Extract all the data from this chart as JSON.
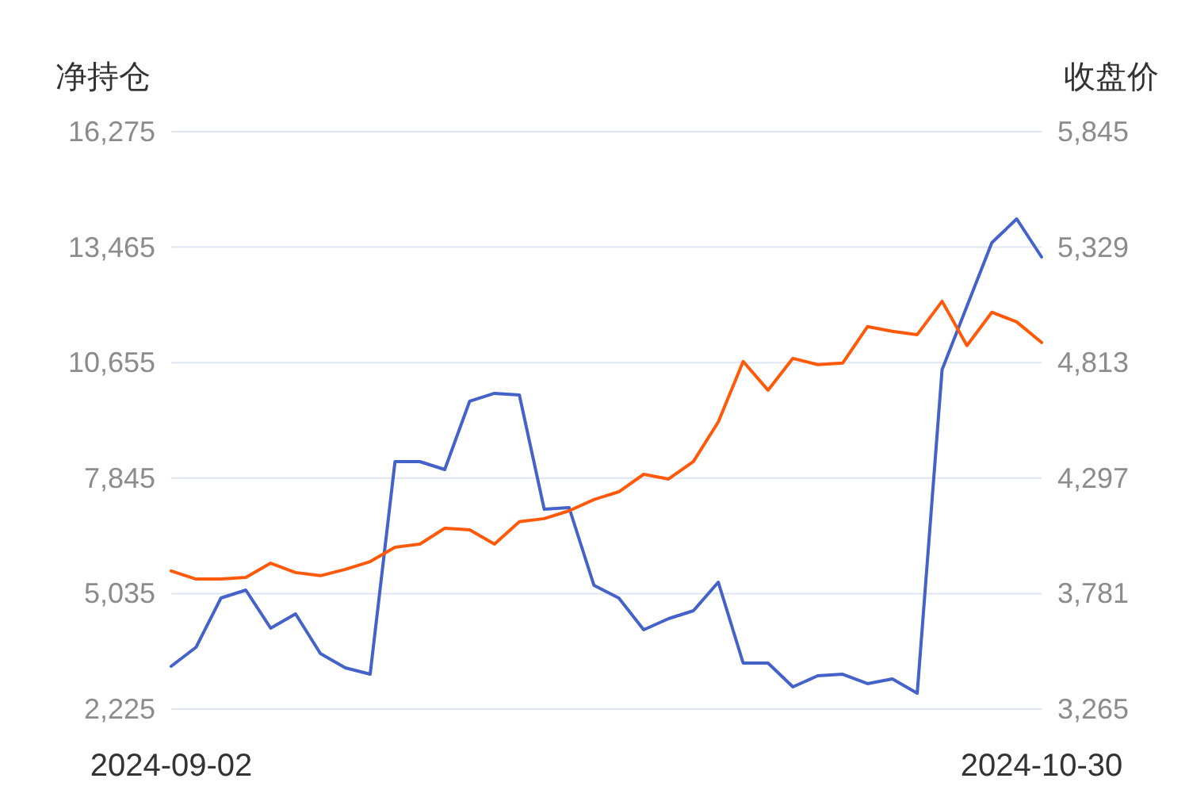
{
  "chart_data": {
    "type": "line",
    "ylabel": "净持仓",
    "y2label": "收盘价",
    "categories": [
      "2024-09-02",
      null,
      null,
      null,
      null,
      null,
      null,
      null,
      null,
      null,
      null,
      null,
      null,
      null,
      null,
      null,
      null,
      null,
      null,
      null,
      null,
      null,
      null,
      null,
      null,
      null,
      null,
      null,
      null,
      null,
      null,
      null,
      null,
      null,
      null,
      "2024-10-30"
    ],
    "series": [
      {
        "color": "#4562c9",
        "values": [
          3267,
          3730,
          4927,
          5120,
          4194,
          4541,
          3576,
          3229,
          3074,
          8247,
          8247,
          8054,
          9714,
          9907,
          9868,
          7089,
          7127,
          5236,
          4927,
          4155,
          4425,
          4618,
          5313,
          3344,
          3344,
          2765,
          3036,
          3074,
          2843,
          2958,
          2611,
          10485,
          12029,
          13573,
          14152,
          13226
        ]
      },
      {
        "color": "#ff5a0a",
        "axis": "y2",
        "values": [
          3882,
          3846,
          3846,
          3853,
          3917,
          3875,
          3861,
          3889,
          3924,
          3988,
          4002,
          4073,
          4066,
          4002,
          4102,
          4116,
          4151,
          4201,
          4236,
          4314,
          4293,
          4371,
          4548,
          4818,
          4690,
          4832,
          4804,
          4811,
          4974,
          4953,
          4938,
          5087,
          4889,
          5038,
          4995,
          4903
        ]
      }
    ],
    "ylim": [
      2225,
      16275
    ],
    "yticks": [
      {
        "value": 2225,
        "label": "2,225"
      },
      {
        "value": 5035,
        "label": "5,035"
      },
      {
        "value": 7845,
        "label": "7,845"
      },
      {
        "value": 10655,
        "label": "10,655"
      },
      {
        "value": 13465,
        "label": "13,465"
      },
      {
        "value": 16275,
        "label": "16,275"
      }
    ],
    "y2lim": [
      3265,
      5845
    ],
    "y2ticks": [
      {
        "value": 3265,
        "label": "3,265"
      },
      {
        "value": 3781,
        "label": "3,781"
      },
      {
        "value": 4297,
        "label": "4,297"
      },
      {
        "value": 4813,
        "label": "4,813"
      },
      {
        "value": 5329,
        "label": "5,329"
      },
      {
        "value": 5845,
        "label": "5,845"
      }
    ],
    "grid": "y"
  }
}
